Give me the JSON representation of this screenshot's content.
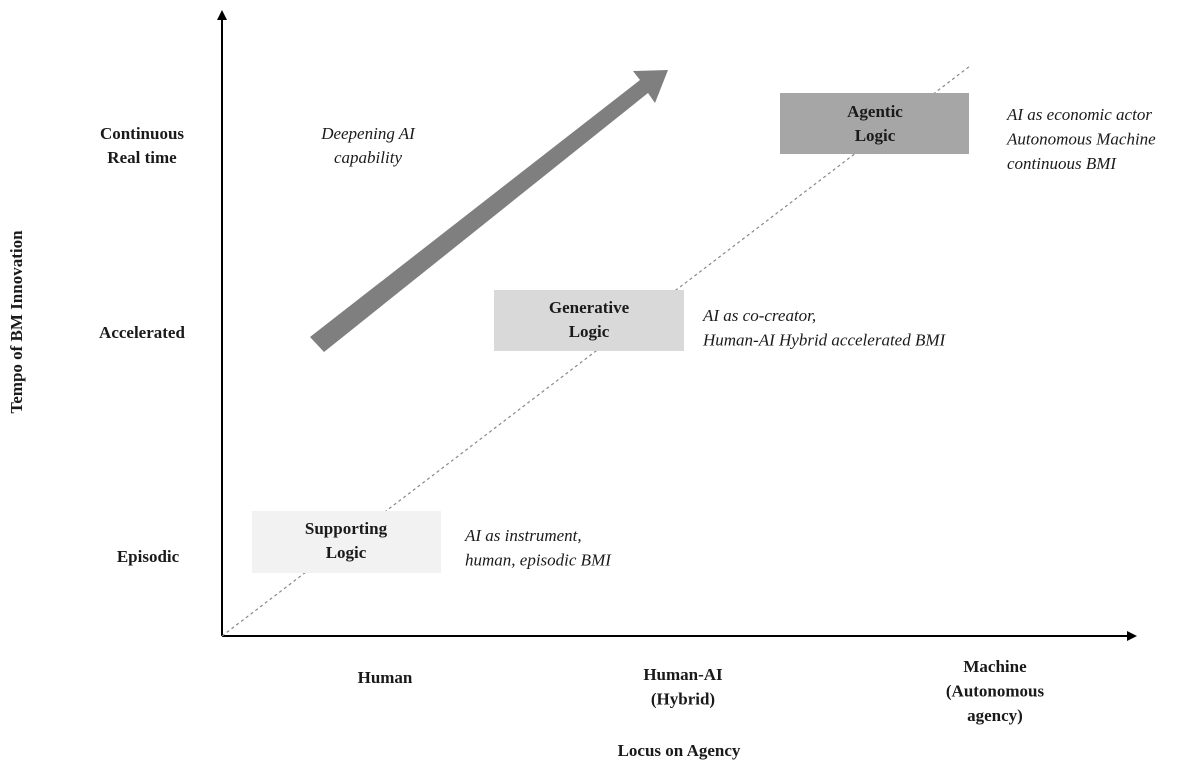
{
  "y_axis": {
    "title": "Tempo of BM Innovation",
    "levels": [
      {
        "lines": [
          "Continuous",
          "Real time"
        ]
      },
      {
        "lines": [
          "Accelerated"
        ]
      },
      {
        "lines": [
          "Episodic"
        ]
      }
    ]
  },
  "x_axis": {
    "title": "Locus on Agency",
    "levels": [
      {
        "lines": [
          "Human"
        ]
      },
      {
        "lines": [
          "Human-AI",
          "(Hybrid)"
        ]
      },
      {
        "lines": [
          "Machine",
          "(Autonomous",
          "agency)"
        ]
      }
    ]
  },
  "trend": {
    "lines": [
      "Deepening AI",
      "capability"
    ]
  },
  "logics": [
    {
      "name": [
        "Supporting",
        "Logic"
      ],
      "description": [
        "AI as instrument,",
        "human, episodic BMI"
      ]
    },
    {
      "name": [
        "Generative",
        "Logic"
      ],
      "description": [
        "AI as co-creator,",
        "Human-AI Hybrid accelerated BMI"
      ]
    },
    {
      "name": [
        "Agentic",
        "Logic"
      ],
      "description": [
        "AI as economic actor",
        "Autonomous Machine",
        "continuous BMI"
      ]
    }
  ]
}
